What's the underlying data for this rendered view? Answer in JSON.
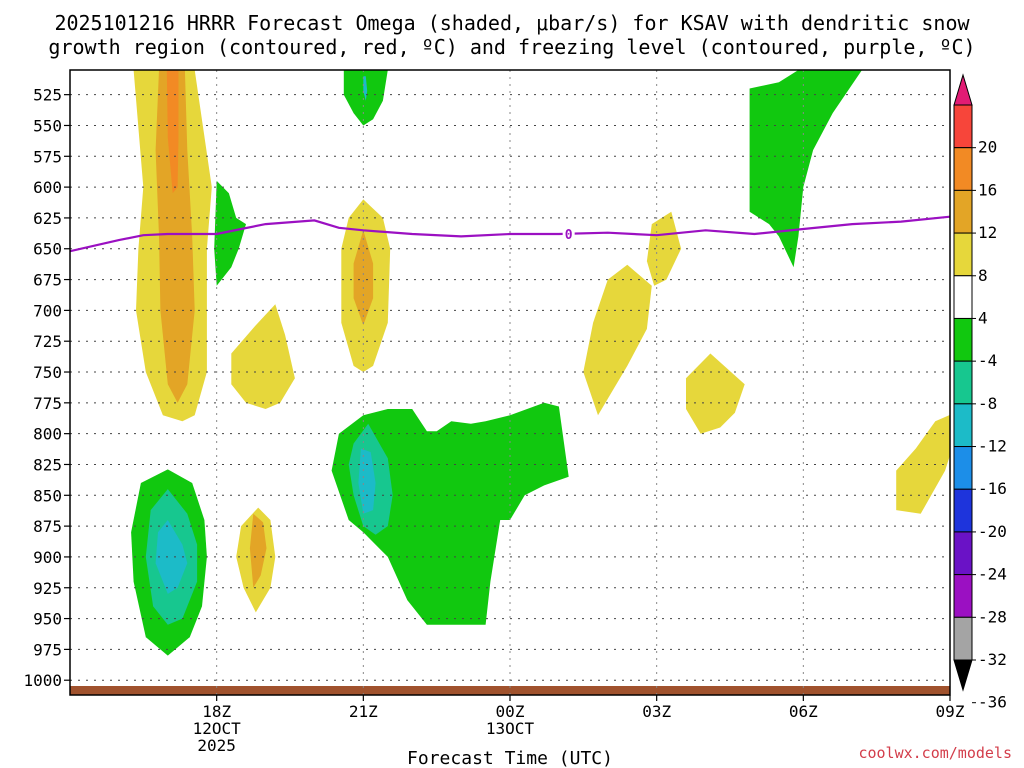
{
  "chart_data": {
    "type": "contour",
    "title_line1": "2025101216 HRRR Forecast Omega (shaded, μbar/s) for KSAV with dendritic snow",
    "title_line2": "growth region (contoured, red, ºC) and freezing level (contoured, purple, ºC)",
    "xlabel": "Forecast Time (UTC)",
    "credit": "coolwx.com/models",
    "x_range_hours": [
      -1.0,
      17.0
    ],
    "y_range_hPa": [
      505,
      1012
    ],
    "y_ticks": [
      525,
      550,
      575,
      600,
      625,
      650,
      675,
      700,
      725,
      750,
      775,
      800,
      825,
      850,
      875,
      900,
      925,
      950,
      975,
      1000
    ],
    "y_tick_labels": [
      "525",
      "550",
      "575",
      "600",
      "625",
      "650",
      "675",
      "700",
      "725",
      "750",
      "775",
      "800",
      "825",
      "850",
      "875",
      "900",
      "925",
      "950",
      "975",
      "1000"
    ],
    "x_ticks": [
      {
        "hour": 2,
        "lines": [
          "18Z",
          "12OCT",
          "2025"
        ]
      },
      {
        "hour": 5,
        "lines": [
          "21Z"
        ]
      },
      {
        "hour": 8,
        "lines": [
          "00Z",
          "13OCT"
        ]
      },
      {
        "hour": 11,
        "lines": [
          "03Z"
        ]
      },
      {
        "hour": 14,
        "lines": [
          "06Z"
        ]
      },
      {
        "hour": 17,
        "lines": [
          "09Z"
        ]
      }
    ],
    "colorbar": {
      "labels": [
        "20",
        "16",
        "12",
        "8",
        "4",
        "-4",
        "-8",
        "-12",
        "-16",
        "-20",
        "-24",
        "-28",
        "-32",
        "-36"
      ],
      "colors": [
        "#e21b74",
        "#f7453a",
        "#f28a24",
        "#e3a526",
        "#e6d73b",
        "#ffffff",
        "#11c80f",
        "#17c78f",
        "#1cbbc8",
        "#1c8ee8",
        "#1e34dc",
        "#6a12c6",
        "#9b10c2",
        "#a4a4a4",
        "#000000"
      ]
    },
    "contour_labels": [
      "0"
    ],
    "freezing_level": {
      "label": "0",
      "hours": [
        -1.0,
        0.0,
        0.5,
        1.0,
        2.0,
        2.5,
        3.0,
        4.0,
        4.5,
        5.0,
        6.0,
        7.0,
        8.0,
        9.0,
        10.0,
        11.0,
        12.0,
        13.0,
        14.0,
        15.0,
        16.0,
        17.0
      ],
      "pressure_hPa": [
        652,
        643,
        639,
        638,
        638,
        634,
        630,
        627,
        633,
        635,
        638,
        640,
        638,
        638,
        637,
        639,
        635,
        638,
        634,
        630,
        628,
        624
      ]
    },
    "omega_regions": [
      {
        "name": "upward-tall-column",
        "value": 6,
        "hours": [
          0.15,
          0.5,
          0.95,
          1.55,
          1.9,
          1.8,
          1.8,
          1.8,
          1.55,
          1.3,
          0.9,
          0.55,
          0.35,
          0.4,
          0.5,
          0.3
        ],
        "pressure_hPa": [
          505,
          505,
          505,
          505,
          600,
          650,
          700,
          750,
          785,
          790,
          785,
          750,
          700,
          650,
          600,
          505
        ]
      },
      {
        "name": "upward-core-12",
        "value": 10,
        "hours": [
          0.82,
          1.1,
          1.35,
          1.4,
          1.5,
          1.55,
          1.4,
          1.2,
          1.0,
          0.85,
          0.82,
          0.75
        ],
        "pressure_hPa": [
          505,
          505,
          505,
          570,
          640,
          700,
          760,
          775,
          760,
          700,
          640,
          570
        ]
      },
      {
        "name": "upward-core-16",
        "value": 14,
        "hours": [
          0.98,
          1.1,
          1.22,
          1.22,
          1.2,
          1.1,
          1.0
        ],
        "pressure_hPa": [
          505,
          505,
          505,
          560,
          600,
          605,
          560
        ]
      },
      {
        "name": "downward-lowlevel-left",
        "value": -6,
        "hours": [
          1.0,
          1.5,
          1.75,
          1.8,
          1.7,
          1.45,
          1.0,
          0.55,
          0.3,
          0.25,
          0.45
        ],
        "pressure_hPa": [
          829,
          840,
          870,
          900,
          940,
          965,
          980,
          965,
          920,
          880,
          840
        ]
      },
      {
        "name": "downward-lowlevel-left-core",
        "value": -10,
        "hours": [
          1.0,
          1.4,
          1.6,
          1.6,
          1.3,
          1.0,
          0.7,
          0.55,
          0.65
        ],
        "pressure_hPa": [
          845,
          865,
          890,
          920,
          950,
          955,
          940,
          900,
          862
        ]
      },
      {
        "name": "downward-lowlevel-left-inner",
        "value": -14,
        "hours": [
          1.0,
          1.3,
          1.4,
          1.2,
          1.0,
          0.75,
          0.8
        ],
        "pressure_hPa": [
          870,
          890,
          905,
          925,
          930,
          905,
          880
        ]
      },
      {
        "name": "downward-small-18z",
        "value": -6,
        "hours": [
          2.0,
          2.25,
          2.4,
          2.6,
          2.45,
          2.3,
          2.0,
          1.95
        ],
        "pressure_hPa": [
          595,
          605,
          625,
          630,
          650,
          665,
          680,
          650
        ]
      },
      {
        "name": "upward-blob-19z",
        "value": 6,
        "hours": [
          2.3,
          2.8,
          3.2,
          3.4,
          3.6,
          3.3,
          3.0,
          2.6,
          2.3
        ],
        "pressure_hPa": [
          735,
          712,
          695,
          720,
          755,
          775,
          780,
          775,
          760
        ]
      },
      {
        "name": "upward-blob-1830z",
        "value": 6,
        "hours": [
          2.5,
          2.85,
          3.1,
          3.2,
          3.1,
          2.8,
          2.55,
          2.4
        ],
        "pressure_hPa": [
          875,
          860,
          870,
          900,
          925,
          945,
          925,
          900
        ]
      },
      {
        "name": "upward-blob-1830z-core",
        "value": 10,
        "hours": [
          2.75,
          2.95,
          3.02,
          2.9,
          2.75,
          2.68
        ],
        "pressure_hPa": [
          865,
          872,
          893,
          915,
          925,
          893
        ]
      },
      {
        "name": "downward-top-21z",
        "value": -6,
        "hours": [
          4.6,
          5.05,
          5.5,
          5.4,
          5.2,
          5.0,
          4.8,
          4.6
        ],
        "pressure_hPa": [
          505,
          505,
          505,
          530,
          545,
          550,
          540,
          525
        ]
      },
      {
        "name": "downward-top-21z-core",
        "value": -12,
        "hours": [
          5.0,
          5.05,
          5.08,
          5.05,
          5.0
        ],
        "pressure_hPa": [
          510,
          510,
          522,
          530,
          522
        ]
      },
      {
        "name": "upward-column-21z",
        "value": 6,
        "hours": [
          5.0,
          5.4,
          5.55,
          5.5,
          5.2,
          5.0,
          4.8,
          4.55,
          4.55,
          4.7
        ],
        "pressure_hPa": [
          610,
          625,
          650,
          710,
          745,
          750,
          745,
          710,
          650,
          625
        ]
      },
      {
        "name": "upward-column-21z-core",
        "value": 10,
        "hours": [
          5.0,
          5.2,
          5.2,
          5.0,
          4.8,
          4.8
        ],
        "pressure_hPa": [
          635,
          662,
          690,
          712,
          690,
          662
        ]
      },
      {
        "name": "downward-lowlevel-mid",
        "value": -6,
        "hours": [
          4.5,
          5.0,
          5.5,
          6.0,
          6.3,
          6.5,
          6.8,
          7.2,
          7.5,
          8.0,
          8.7,
          9.0,
          9.2,
          8.7,
          8.3,
          8.0,
          7.8,
          7.6,
          7.5,
          6.3,
          5.9,
          5.5,
          5.0,
          4.7,
          4.35
        ],
        "pressure_hPa": [
          800,
          785,
          780,
          780,
          798,
          798,
          790,
          792,
          790,
          785,
          775,
          778,
          835,
          842,
          850,
          870,
          870,
          920,
          955,
          955,
          935,
          900,
          880,
          870,
          830
        ]
      },
      {
        "name": "downward-lowlevel-mid-core",
        "value": -10,
        "hours": [
          4.8,
          5.1,
          5.5,
          5.6,
          5.5,
          5.25,
          5.0,
          4.8,
          4.7
        ],
        "pressure_hPa": [
          808,
          792,
          820,
          850,
          875,
          882,
          875,
          850,
          825
        ]
      },
      {
        "name": "downward-lowlevel-mid-inner",
        "value": -14,
        "hours": [
          4.95,
          5.15,
          5.25,
          5.2,
          5.0,
          4.9
        ],
        "pressure_hPa": [
          812,
          815,
          840,
          862,
          865,
          840
        ]
      },
      {
        "name": "upward-streak-02z",
        "value": 6,
        "hours": [
          10.0,
          10.4,
          10.9,
          10.8,
          10.4,
          9.8,
          9.5,
          9.7
        ],
        "pressure_hPa": [
          675,
          663,
          680,
          715,
          745,
          785,
          750,
          710
        ]
      },
      {
        "name": "upward-streak-03z",
        "value": 6,
        "hours": [
          10.9,
          11.3,
          11.5,
          11.2,
          10.95,
          10.8
        ],
        "pressure_hPa": [
          630,
          620,
          650,
          675,
          680,
          660
        ]
      },
      {
        "name": "upward-blob-0430z",
        "value": 6,
        "hours": [
          11.6,
          12.1,
          12.8,
          12.6,
          12.3,
          11.9,
          11.6
        ],
        "pressure_hPa": [
          755,
          735,
          760,
          783,
          795,
          800,
          780
        ]
      },
      {
        "name": "downward-upper-05z",
        "value": -6,
        "hours": [
          12.9,
          13.5,
          13.9,
          14.5,
          15.2,
          14.6,
          14.2,
          14.0,
          13.9,
          13.8,
          13.5,
          13.3,
          12.9
        ],
        "pressure_hPa": [
          520,
          515,
          505,
          505,
          505,
          540,
          570,
          600,
          640,
          665,
          640,
          630,
          620
        ]
      },
      {
        "name": "upward-blob-09z",
        "value": 6,
        "hours": [
          16.7,
          17.1,
          17.1,
          16.9,
          16.4,
          15.9,
          15.9,
          16.3
        ],
        "pressure_hPa": [
          790,
          783,
          805,
          830,
          865,
          862,
          830,
          812
        ]
      }
    ],
    "terrain_note": "surface at ~1005 hPa"
  }
}
